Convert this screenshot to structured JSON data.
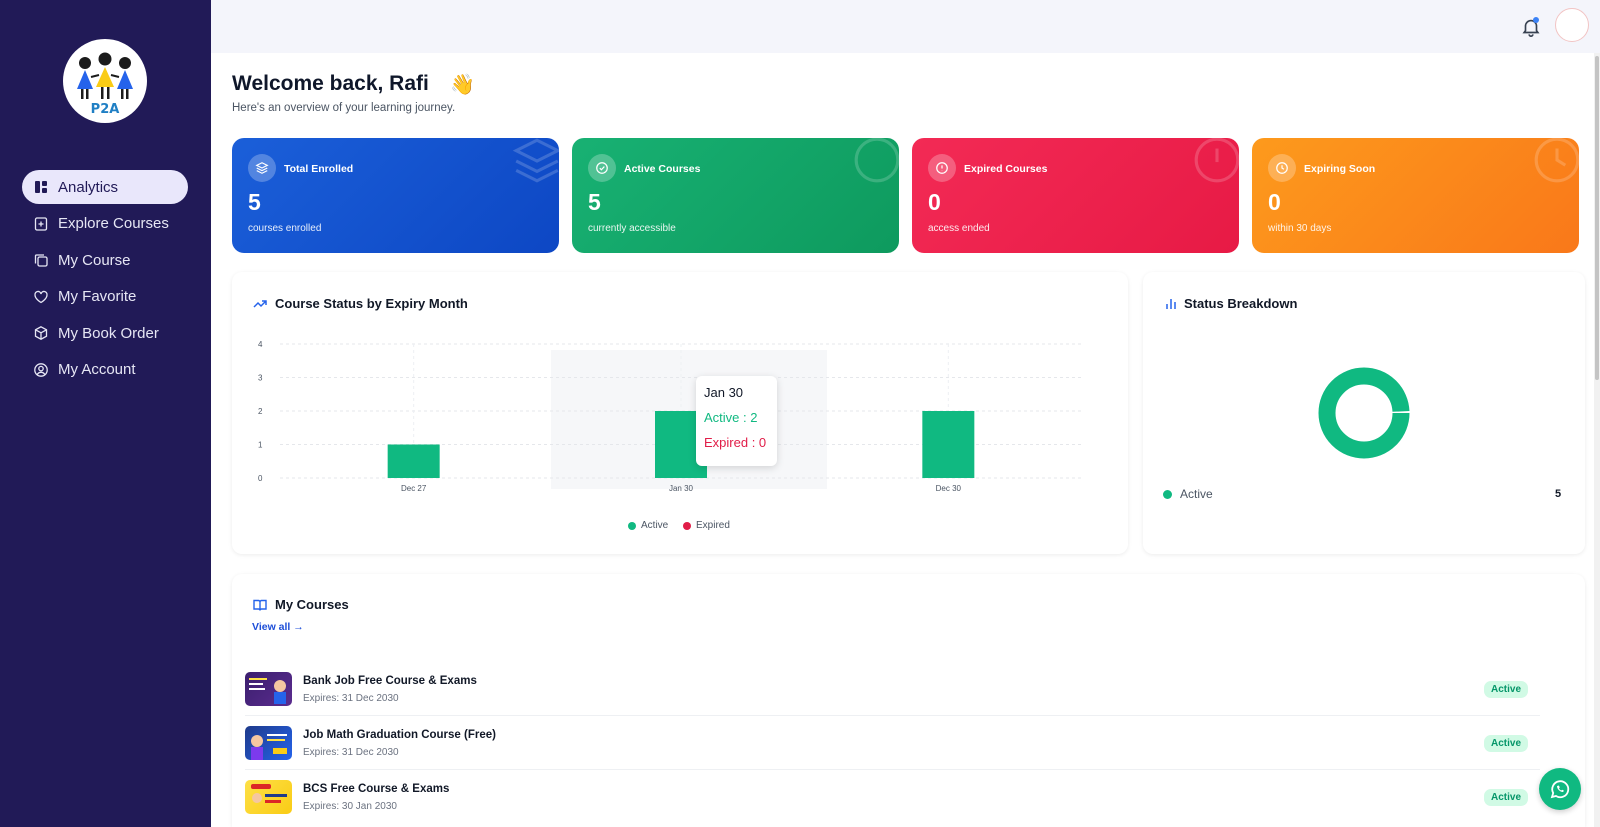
{
  "brand": {
    "logo_text": "P2A"
  },
  "sidebar": {
    "items": [
      {
        "label": "Analytics",
        "icon": "dashboard-icon",
        "active": true
      },
      {
        "label": "Explore Courses",
        "icon": "plus-square-icon"
      },
      {
        "label": "My Course",
        "icon": "copy-icon"
      },
      {
        "label": "My Favorite",
        "icon": "heart-icon"
      },
      {
        "label": "My Book Order",
        "icon": "package-icon"
      },
      {
        "label": "My Account",
        "icon": "user-circle-icon"
      }
    ]
  },
  "header": {
    "notification_icon": "bell-icon"
  },
  "welcome": {
    "title": "Welcome back, Rafi",
    "emoji": "👋",
    "subtitle": "Here's an overview of your learning journey."
  },
  "stats": [
    {
      "label": "Total Enrolled",
      "value": "5",
      "sub": "courses enrolled",
      "color": "#1d63db",
      "icon": "layers-icon"
    },
    {
      "label": "Active Courses",
      "value": "5",
      "sub": "currently accessible",
      "color": "#14a86c",
      "icon": "check-circle-icon"
    },
    {
      "label": "Expired Courses",
      "value": "0",
      "sub": "access ended",
      "color": "#f0264f",
      "icon": "alert-circle-icon"
    },
    {
      "label": "Expiring Soon",
      "value": "0",
      "sub": "within 30 days",
      "color": "#fb8a1a",
      "icon": "clock-icon"
    }
  ],
  "expiry_chart": {
    "title": "Course Status by Expiry Month",
    "tooltip": {
      "title": "Jan 30",
      "active": "Active : 2",
      "expired": "Expired : 0"
    },
    "legend": {
      "active": "Active",
      "expired": "Expired"
    }
  },
  "status_breakdown": {
    "title": "Status Breakdown",
    "legend_label": "Active",
    "legend_value": "5"
  },
  "my_courses": {
    "title": "My Courses",
    "view_all": "View all →",
    "items": [
      {
        "name": "Bank Job Free Course & Exams",
        "expires": "Expires: 31 Dec 2030",
        "status": "Active"
      },
      {
        "name": "Job Math Graduation Course (Free)",
        "expires": "Expires: 31 Dec 2030",
        "status": "Active"
      },
      {
        "name": "BCS Free Course & Exams",
        "expires": "Expires: 30 Jan 2030",
        "status": "Active"
      }
    ]
  },
  "colors": {
    "active": "#10b981",
    "expired": "#e11d48",
    "sidebar_bg": "#211a57"
  },
  "chart_data": [
    {
      "type": "bar",
      "title": "Course Status by Expiry Month",
      "categories": [
        "Dec 27",
        "Jan 30",
        "Dec 30"
      ],
      "series": [
        {
          "name": "Active",
          "values": [
            1,
            2,
            2
          ],
          "color": "#10b981"
        },
        {
          "name": "Expired",
          "values": [
            0,
            0,
            0
          ],
          "color": "#e11d48"
        }
      ],
      "ylim": [
        0,
        4
      ],
      "yticks": [
        0,
        1,
        2,
        3,
        4
      ],
      "grid": true,
      "legend": "bottom"
    },
    {
      "type": "pie",
      "title": "Status Breakdown",
      "categories": [
        "Active"
      ],
      "values": [
        5
      ],
      "colors": [
        "#10b981"
      ]
    }
  ]
}
